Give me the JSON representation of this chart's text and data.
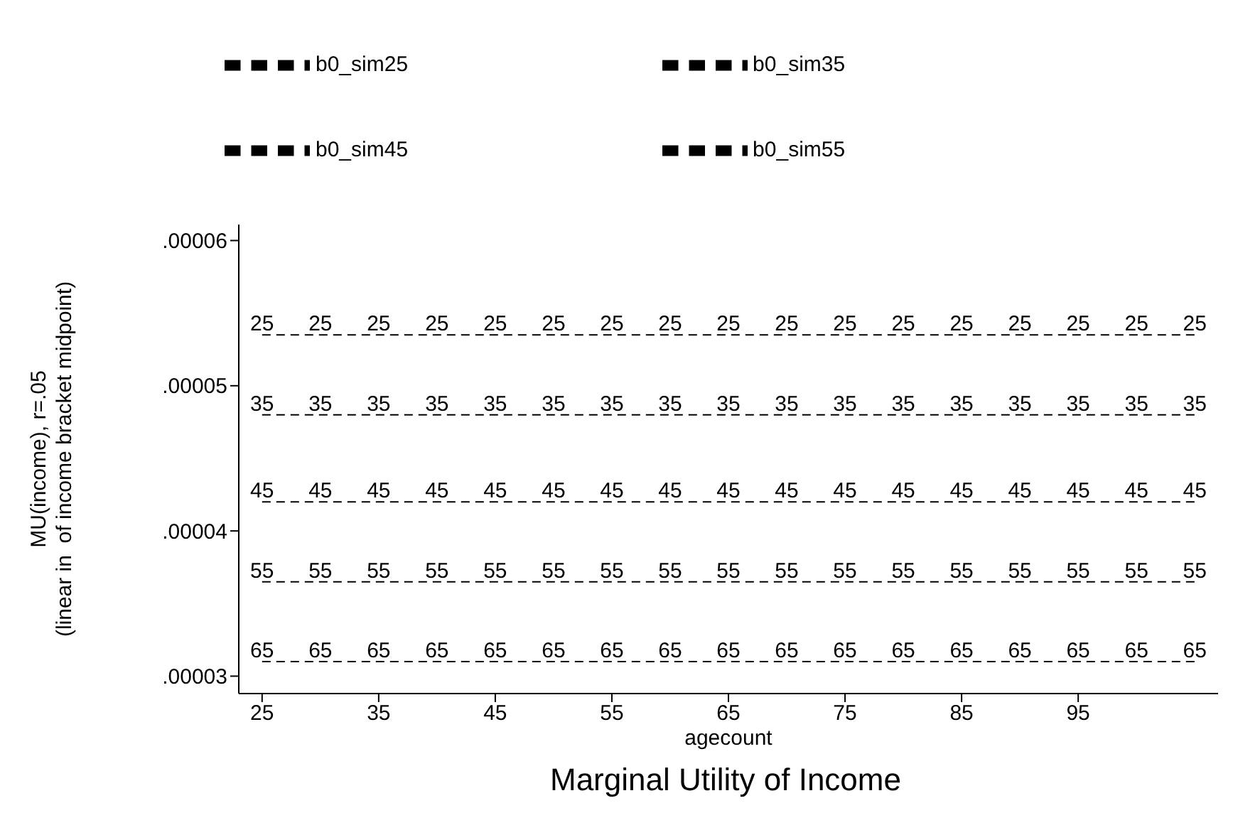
{
  "chart_data": {
    "type": "line",
    "title": "Marginal Utility of Income",
    "xlabel": "agecount",
    "ylabel": "MU(income), r=.05\n(linear in  of income bracket midpoint)",
    "x": [
      25,
      30,
      35,
      40,
      45,
      50,
      55,
      60,
      65,
      70,
      75,
      80,
      85,
      90,
      95,
      100,
      105
    ],
    "series": [
      {
        "name": "b0_sim25",
        "color": "#000000",
        "values": [
          5.35e-05,
          5.35e-05,
          5.35e-05,
          5.35e-05,
          5.35e-05,
          5.35e-05,
          5.35e-05,
          5.35e-05,
          5.35e-05,
          5.35e-05,
          5.35e-05,
          5.35e-05,
          5.35e-05,
          5.35e-05,
          5.35e-05,
          5.35e-05,
          5.35e-05
        ]
      },
      {
        "name": "b0_sim35",
        "color": "#000000",
        "values": [
          4.8e-05,
          4.8e-05,
          4.8e-05,
          4.8e-05,
          4.8e-05,
          4.8e-05,
          4.8e-05,
          4.8e-05,
          4.8e-05,
          4.8e-05,
          4.8e-05,
          4.8e-05,
          4.8e-05,
          4.8e-05,
          4.8e-05,
          4.8e-05,
          4.8e-05
        ]
      },
      {
        "name": "b0_sim45",
        "color": "#000000",
        "values": [
          4.2e-05,
          4.2e-05,
          4.2e-05,
          4.2e-05,
          4.2e-05,
          4.2e-05,
          4.2e-05,
          4.2e-05,
          4.2e-05,
          4.2e-05,
          4.2e-05,
          4.2e-05,
          4.2e-05,
          4.2e-05,
          4.2e-05,
          4.2e-05,
          4.2e-05
        ]
      },
      {
        "name": "b0_sim55",
        "color": "#000000",
        "values": [
          3.65e-05,
          3.65e-05,
          3.65e-05,
          3.65e-05,
          3.65e-05,
          3.65e-05,
          3.65e-05,
          3.65e-05,
          3.65e-05,
          3.65e-05,
          3.65e-05,
          3.65e-05,
          3.65e-05,
          3.65e-05,
          3.65e-05,
          3.65e-05,
          3.65e-05
        ]
      },
      {
        "color": "#000000",
        "values": [
          3.1e-05,
          3.1e-05,
          3.1e-05,
          3.1e-05,
          3.1e-05,
          3.1e-05,
          3.1e-05,
          3.1e-05,
          3.1e-05,
          3.1e-05,
          3.1e-05,
          3.1e-05,
          3.1e-05,
          3.1e-05,
          3.1e-05,
          3.1e-05,
          3.1e-05
        ]
      }
    ],
    "annotations": [
      {
        "text": "25",
        "x": 25,
        "y": 5.35e-05
      },
      {
        "text": "25",
        "x": 30,
        "y": 5.35e-05
      },
      {
        "text": "25",
        "x": 35,
        "y": 5.35e-05
      },
      {
        "text": "25",
        "x": 40,
        "y": 5.35e-05
      },
      {
        "text": "25",
        "x": 45,
        "y": 5.35e-05
      },
      {
        "text": "25",
        "x": 50,
        "y": 5.35e-05
      },
      {
        "text": "25",
        "x": 55,
        "y": 5.35e-05
      },
      {
        "text": "25",
        "x": 60,
        "y": 5.35e-05
      },
      {
        "text": "25",
        "x": 65,
        "y": 5.35e-05
      },
      {
        "text": "25",
        "x": 70,
        "y": 5.35e-05
      },
      {
        "text": "25",
        "x": 75,
        "y": 5.35e-05
      },
      {
        "text": "25",
        "x": 80,
        "y": 5.35e-05
      },
      {
        "text": "25",
        "x": 85,
        "y": 5.35e-05
      },
      {
        "text": "25",
        "x": 90,
        "y": 5.35e-05
      },
      {
        "text": "25",
        "x": 95,
        "y": 5.35e-05
      },
      {
        "text": "25",
        "x": 100,
        "y": 5.35e-05
      },
      {
        "text": "25",
        "x": 105,
        "y": 5.35e-05
      },
      {
        "text": "35",
        "x": 25,
        "y": 4.8e-05
      },
      {
        "text": "35",
        "x": 30,
        "y": 4.8e-05
      },
      {
        "text": "35",
        "x": 35,
        "y": 4.8e-05
      },
      {
        "text": "35",
        "x": 40,
        "y": 4.8e-05
      },
      {
        "text": "35",
        "x": 45,
        "y": 4.8e-05
      },
      {
        "text": "35",
        "x": 50,
        "y": 4.8e-05
      },
      {
        "text": "35",
        "x": 55,
        "y": 4.8e-05
      },
      {
        "text": "35",
        "x": 60,
        "y": 4.8e-05
      },
      {
        "text": "35",
        "x": 65,
        "y": 4.8e-05
      },
      {
        "text": "35",
        "x": 70,
        "y": 4.8e-05
      },
      {
        "text": "35",
        "x": 75,
        "y": 4.8e-05
      },
      {
        "text": "35",
        "x": 80,
        "y": 4.8e-05
      },
      {
        "text": "35",
        "x": 85,
        "y": 4.8e-05
      },
      {
        "text": "35",
        "x": 90,
        "y": 4.8e-05
      },
      {
        "text": "35",
        "x": 95,
        "y": 4.8e-05
      },
      {
        "text": "35",
        "x": 100,
        "y": 4.8e-05
      },
      {
        "text": "35",
        "x": 105,
        "y": 4.8e-05
      },
      {
        "text": "45",
        "x": 25,
        "y": 4.2e-05
      },
      {
        "text": "45",
        "x": 30,
        "y": 4.2e-05
      },
      {
        "text": "45",
        "x": 35,
        "y": 4.2e-05
      },
      {
        "text": "45",
        "x": 40,
        "y": 4.2e-05
      },
      {
        "text": "45",
        "x": 45,
        "y": 4.2e-05
      },
      {
        "text": "45",
        "x": 50,
        "y": 4.2e-05
      },
      {
        "text": "45",
        "x": 55,
        "y": 4.2e-05
      },
      {
        "text": "45",
        "x": 60,
        "y": 4.2e-05
      },
      {
        "text": "45",
        "x": 65,
        "y": 4.2e-05
      },
      {
        "text": "45",
        "x": 70,
        "y": 4.2e-05
      },
      {
        "text": "45",
        "x": 75,
        "y": 4.2e-05
      },
      {
        "text": "45",
        "x": 80,
        "y": 4.2e-05
      },
      {
        "text": "45",
        "x": 85,
        "y": 4.2e-05
      },
      {
        "text": "45",
        "x": 90,
        "y": 4.2e-05
      },
      {
        "text": "45",
        "x": 95,
        "y": 4.2e-05
      },
      {
        "text": "45",
        "x": 100,
        "y": 4.2e-05
      },
      {
        "text": "45",
        "x": 105,
        "y": 4.2e-05
      },
      {
        "text": "55",
        "x": 25,
        "y": 3.65e-05
      },
      {
        "text": "55",
        "x": 30,
        "y": 3.65e-05
      },
      {
        "text": "55",
        "x": 35,
        "y": 3.65e-05
      },
      {
        "text": "55",
        "x": 40,
        "y": 3.65e-05
      },
      {
        "text": "55",
        "x": 45,
        "y": 3.65e-05
      },
      {
        "text": "55",
        "x": 50,
        "y": 3.65e-05
      },
      {
        "text": "55",
        "x": 55,
        "y": 3.65e-05
      },
      {
        "text": "55",
        "x": 60,
        "y": 3.65e-05
      },
      {
        "text": "55",
        "x": 65,
        "y": 3.65e-05
      },
      {
        "text": "55",
        "x": 70,
        "y": 3.65e-05
      },
      {
        "text": "55",
        "x": 75,
        "y": 3.65e-05
      },
      {
        "text": "55",
        "x": 80,
        "y": 3.65e-05
      },
      {
        "text": "55",
        "x": 85,
        "y": 3.65e-05
      },
      {
        "text": "55",
        "x": 90,
        "y": 3.65e-05
      },
      {
        "text": "55",
        "x": 95,
        "y": 3.65e-05
      },
      {
        "text": "55",
        "x": 100,
        "y": 3.65e-05
      },
      {
        "text": "55",
        "x": 105,
        "y": 3.65e-05
      },
      {
        "text": "65",
        "x": 25,
        "y": 3.1e-05
      },
      {
        "text": "65",
        "x": 30,
        "y": 3.1e-05
      },
      {
        "text": "65",
        "x": 35,
        "y": 3.1e-05
      },
      {
        "text": "65",
        "x": 40,
        "y": 3.1e-05
      },
      {
        "text": "65",
        "x": 45,
        "y": 3.1e-05
      },
      {
        "text": "65",
        "x": 50,
        "y": 3.1e-05
      },
      {
        "text": "65",
        "x": 55,
        "y": 3.1e-05
      },
      {
        "text": "65",
        "x": 60,
        "y": 3.1e-05
      },
      {
        "text": "65",
        "x": 65,
        "y": 3.1e-05
      },
      {
        "text": "65",
        "x": 70,
        "y": 3.1e-05
      },
      {
        "text": "65",
        "x": 75,
        "y": 3.1e-05
      },
      {
        "text": "65",
        "x": 80,
        "y": 3.1e-05
      },
      {
        "text": "65",
        "x": 85,
        "y": 3.1e-05
      },
      {
        "text": "65",
        "x": 90,
        "y": 3.1e-05
      },
      {
        "text": "65",
        "x": 95,
        "y": 3.1e-05
      },
      {
        "text": "65",
        "x": 100,
        "y": 3.1e-05
      },
      {
        "text": "65",
        "x": 105,
        "y": 3.1e-05
      }
    ],
    "xlim": [
      23,
      107
    ],
    "xticks": [
      25,
      35,
      45,
      55,
      65,
      75,
      85,
      95
    ],
    "ylim": [
      2.88e-05,
      6.11e-05
    ],
    "yticks": [
      {
        "value": 3e-05,
        "label": ".00003"
      },
      {
        "value": 4e-05,
        "label": ".00004"
      },
      {
        "value": 5e-05,
        "label": ".00005"
      },
      {
        "value": 6e-05,
        "label": ".00006"
      }
    ],
    "grid": false,
    "legend": "top",
    "marker": "none",
    "line_style": "dashed"
  }
}
